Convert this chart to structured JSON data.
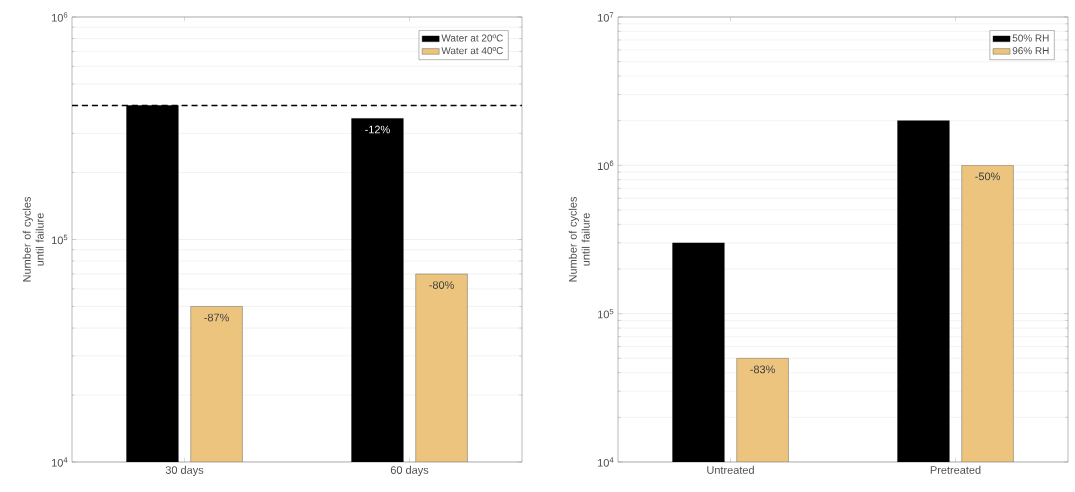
{
  "chart_data": [
    {
      "type": "bar",
      "categories": [
        "30 days",
        "60 days"
      ],
      "ylabel": "Number of cycles until failure",
      "log": true,
      "grid": "y",
      "legend": "top right",
      "ylim": [
        10000,
        1000000
      ],
      "yticks": [
        {
          "value": 10000,
          "label": "10$^{4}$"
        },
        {
          "value": 100000,
          "label": "10$^{5}$"
        },
        {
          "value": 1000000,
          "label": "10$^{6}$"
        }
      ],
      "series": [
        {
          "name": "Water at 20ºC",
          "color": "#000000",
          "values": [
            400000,
            350000
          ]
        },
        {
          "name": "Water at 40ºC",
          "color": "#ecc47e",
          "values": [
            50000,
            70000
          ]
        }
      ],
      "annotations": [
        "-12%",
        "-87%",
        "-80%"
      ],
      "ref_lines": [
        {
          "axis": "y",
          "value": 400000,
          "color": "#000000",
          "line_style": "dashed"
        }
      ]
    },
    {
      "type": "bar",
      "categories": [
        "Untreated",
        "Pretreated"
      ],
      "ylabel": "Number of cycles until failure",
      "log": true,
      "grid": "y",
      "legend": "top right",
      "ylim": [
        10000,
        10000000
      ],
      "yticks": [
        {
          "value": 10000,
          "label": "10$^{4}$"
        },
        {
          "value": 100000,
          "label": "10$^{5}$"
        },
        {
          "value": 1000000,
          "label": "10$^{6}$"
        },
        {
          "value": 10000000,
          "label": "10$^{7}$"
        }
      ],
      "series": [
        {
          "name": "50% RH",
          "color": "#000000",
          "values": [
            300000,
            2000000
          ]
        },
        {
          "name": "96% RH",
          "color": "#ecc47e",
          "values": [
            50000,
            1000000
          ]
        }
      ],
      "annotations": [
        "-83%",
        "-50%"
      ]
    }
  ]
}
